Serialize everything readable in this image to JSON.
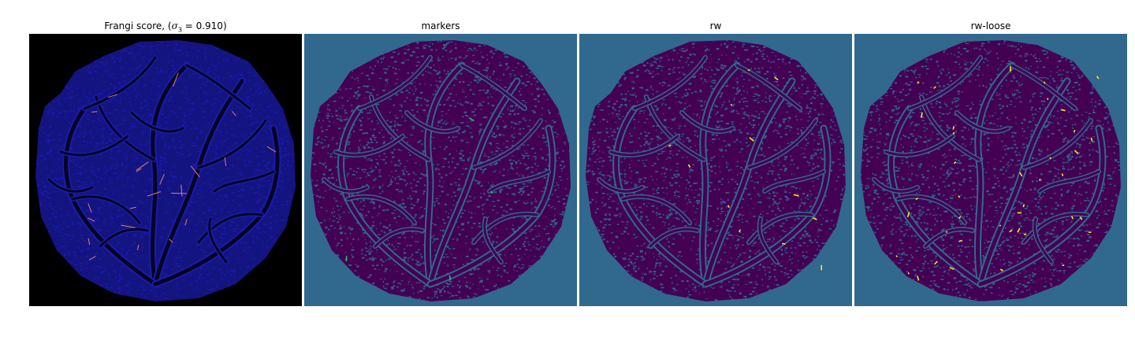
{
  "panels": [
    {
      "title_prefix": "Frangi score, (",
      "title_sigma": "σ",
      "title_sub": "3",
      "title_suffix": " = 0.910)",
      "background": "#000000",
      "disc_color": "#141480",
      "texture_color": "#1a1ab0",
      "vessel_color": "#05051e",
      "highlight_color": "#d7836d"
    },
    {
      "title": "markers",
      "background": "#31688e",
      "disc_color": "#440154",
      "texture_color": "#31688e",
      "vessel_color": "#440154",
      "highlight_color": "#35b779"
    },
    {
      "title": "rw",
      "background": "#31688e",
      "disc_color": "#440154",
      "texture_color": "#31688e",
      "vessel_color": "#440154",
      "highlight_color": "#fde725"
    },
    {
      "title": "rw-loose",
      "background": "#31688e",
      "disc_color": "#440154",
      "texture_color": "#31688e",
      "vessel_color": "#440154",
      "highlight_color": "#fde725"
    }
  ]
}
